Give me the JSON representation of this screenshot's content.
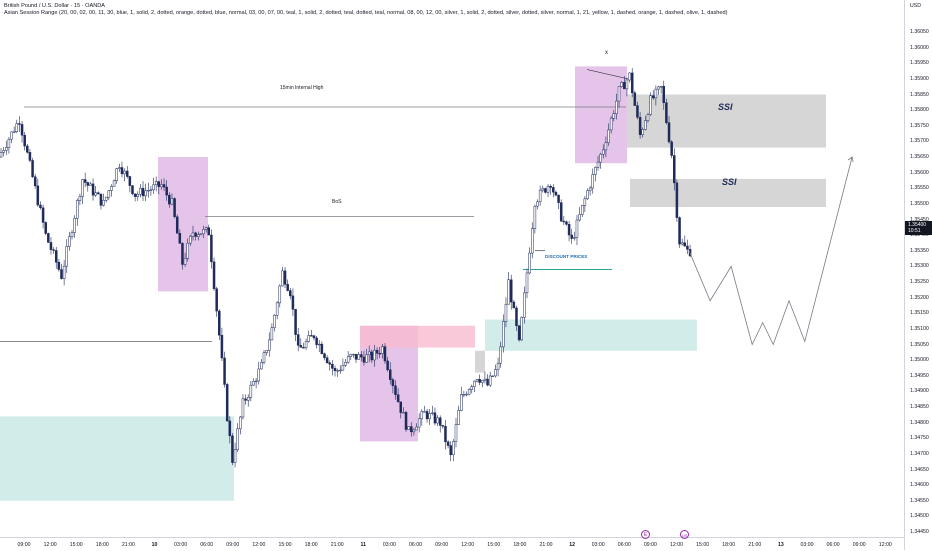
{
  "legend": {
    "title": "British Pound / U.S. Dollar · 15 · OANDA",
    "indicator": "Asian Session Range (20, 00, 02, 00, 11, 30, blue, 1, solid, 2, dotted, orange, dotted, blue, normal, 03, 00, 07, 00, teal, 1, solid, 2, dotted, teal, dotted, teal, normal, 08, 00, 12, 00, silver, 1, solid, 2, dotted, silver, dotted, silver, normal, 1, 21, yellow, 1, dashed, orange, 1, dashed, olive, 1, dashed)"
  },
  "price_axis": {
    "currency": "USD",
    "ticks": [
      "1.36050",
      "1.36000",
      "1.35950",
      "1.35900",
      "1.35850",
      "1.35800",
      "1.35750",
      "1.35700",
      "1.35650",
      "1.35600",
      "1.35550",
      "1.35500",
      "1.35450",
      "1.35400",
      "1.35350",
      "1.35300",
      "1.35250",
      "1.35200",
      "1.35150",
      "1.35100",
      "1.35050",
      "1.35000",
      "1.34950",
      "1.34900",
      "1.34850",
      "1.34800",
      "1.34750",
      "1.34700",
      "1.34650",
      "1.34600",
      "1.34550",
      "1.34500",
      "1.34450"
    ],
    "current_price": "1.35400",
    "countdown": "10:51"
  },
  "time_axis": {
    "labels": [
      {
        "t": "09:00",
        "bold": false
      },
      {
        "t": "12:00",
        "bold": false
      },
      {
        "t": "15:00",
        "bold": false
      },
      {
        "t": "18:00",
        "bold": false
      },
      {
        "t": "21:00",
        "bold": false
      },
      {
        "t": "10",
        "bold": true
      },
      {
        "t": "03:00",
        "bold": false
      },
      {
        "t": "06:00",
        "bold": false
      },
      {
        "t": "09:00",
        "bold": false
      },
      {
        "t": "12:00",
        "bold": false
      },
      {
        "t": "15:00",
        "bold": false
      },
      {
        "t": "18:00",
        "bold": false
      },
      {
        "t": "21:00",
        "bold": false
      },
      {
        "t": "11",
        "bold": true
      },
      {
        "t": "03:00",
        "bold": false
      },
      {
        "t": "06:00",
        "bold": false
      },
      {
        "t": "09:00",
        "bold": false
      },
      {
        "t": "12:00",
        "bold": false
      },
      {
        "t": "15:00",
        "bold": false
      },
      {
        "t": "18:00",
        "bold": false
      },
      {
        "t": "21:00",
        "bold": false
      },
      {
        "t": "12",
        "bold": true
      },
      {
        "t": "03:00",
        "bold": false
      },
      {
        "t": "06:00",
        "bold": false
      },
      {
        "t": "09:00",
        "bold": false
      },
      {
        "t": "12:00",
        "bold": false
      },
      {
        "t": "15:00",
        "bold": false
      },
      {
        "t": "18:00",
        "bold": false
      },
      {
        "t": "21:00",
        "bold": false
      },
      {
        "t": "13",
        "bold": true
      },
      {
        "t": "03:00",
        "bold": false
      },
      {
        "t": "06:00",
        "bold": false
      },
      {
        "t": "09:00",
        "bold": false
      },
      {
        "t": "12:00",
        "bold": false
      }
    ]
  },
  "annotations": {
    "internal_high": "15min Internal High",
    "bos": "BoS",
    "ssi_upper": "SSI",
    "ssi_lower": "SSI",
    "discount": "DISCOUNT PRICES",
    "peak_mark": "x"
  },
  "events": [
    "E",
    "US"
  ],
  "colors": {
    "bull_candle": "#ffffff",
    "bear_candle": "#1e2a5a",
    "candle_outline": "#1e2a5a",
    "demand_zone": "#b2dfdb",
    "ssi_zone": "#d6d6d6",
    "session_box": "#e1bee7",
    "fvg_pink": "#f8bbd0",
    "projection": "#787b86"
  },
  "chart_data": {
    "type": "candlestick",
    "symbol": "GBPUSD",
    "timeframe": "15",
    "ylim": [
      1.3443,
      1.3609
    ],
    "path_keypoints": [
      {
        "t": 0,
        "p": 1.3565
      },
      {
        "t": 8,
        "p": 1.3577
      },
      {
        "t": 18,
        "p": 1.354
      },
      {
        "t": 24,
        "p": 1.3527
      },
      {
        "t": 32,
        "p": 1.3558
      },
      {
        "t": 40,
        "p": 1.355
      },
      {
        "t": 46,
        "p": 1.3563
      },
      {
        "t": 52,
        "p": 1.3553
      },
      {
        "t": 62,
        "p": 1.3556
      },
      {
        "t": 66,
        "p": 1.355
      },
      {
        "t": 70,
        "p": 1.3531
      },
      {
        "t": 74,
        "p": 1.3541
      },
      {
        "t": 80,
        "p": 1.3541
      },
      {
        "t": 84,
        "p": 1.3508
      },
      {
        "t": 87,
        "p": 1.3482
      },
      {
        "t": 89,
        "p": 1.3468
      },
      {
        "t": 93,
        "p": 1.3486
      },
      {
        "t": 100,
        "p": 1.3498
      },
      {
        "t": 104,
        "p": 1.351
      },
      {
        "t": 108,
        "p": 1.3528
      },
      {
        "t": 111,
        "p": 1.3522
      },
      {
        "t": 114,
        "p": 1.3503
      },
      {
        "t": 120,
        "p": 1.3508
      },
      {
        "t": 128,
        "p": 1.3496
      },
      {
        "t": 134,
        "p": 1.3501
      },
      {
        "t": 142,
        "p": 1.3501
      },
      {
        "t": 146,
        "p": 1.3504
      },
      {
        "t": 152,
        "p": 1.3487
      },
      {
        "t": 156,
        "p": 1.3477
      },
      {
        "t": 162,
        "p": 1.3483
      },
      {
        "t": 168,
        "p": 1.348
      },
      {
        "t": 172,
        "p": 1.3469
      },
      {
        "t": 176,
        "p": 1.3488
      },
      {
        "t": 182,
        "p": 1.3495
      },
      {
        "t": 186,
        "p": 1.3492
      },
      {
        "t": 190,
        "p": 1.3498
      },
      {
        "t": 194,
        "p": 1.3525
      },
      {
        "t": 198,
        "p": 1.3505
      },
      {
        "t": 204,
        "p": 1.3551
      },
      {
        "t": 210,
        "p": 1.3557
      },
      {
        "t": 214,
        "p": 1.3546
      },
      {
        "t": 218,
        "p": 1.3538
      },
      {
        "t": 224,
        "p": 1.3554
      },
      {
        "t": 230,
        "p": 1.3568
      },
      {
        "t": 236,
        "p": 1.3586
      },
      {
        "t": 240,
        "p": 1.3591
      },
      {
        "t": 244,
        "p": 1.3572
      },
      {
        "t": 248,
        "p": 1.3583
      },
      {
        "t": 252,
        "p": 1.3587
      },
      {
        "t": 256,
        "p": 1.3566
      },
      {
        "t": 259,
        "p": 1.3538
      },
      {
        "t": 262,
        "p": 1.3535
      }
    ],
    "projection": [
      {
        "t": 262,
        "p": 1.3535
      },
      {
        "t": 270,
        "p": 1.3519
      },
      {
        "t": 278,
        "p": 1.353
      },
      {
        "t": 286,
        "p": 1.3505
      },
      {
        "t": 290,
        "p": 1.3512
      },
      {
        "t": 294,
        "p": 1.3505
      },
      {
        "t": 300,
        "p": 1.3519
      },
      {
        "t": 306,
        "p": 1.3506
      },
      {
        "t": 324,
        "p": 1.3565
      }
    ],
    "zones": {
      "ssi_upper": [
        1.3568,
        1.3585
      ],
      "ssi_lower": [
        1.3549,
        1.3558
      ],
      "demand_right": [
        1.3503,
        1.3513
      ],
      "demand_left": [
        1.3455,
        1.3482
      ],
      "fvg": [
        1.3504,
        1.3511
      ]
    },
    "levels": {
      "internal_high": 1.3581,
      "bos": 1.3546,
      "left_line": 1.3506,
      "discount": 1.3529
    }
  }
}
